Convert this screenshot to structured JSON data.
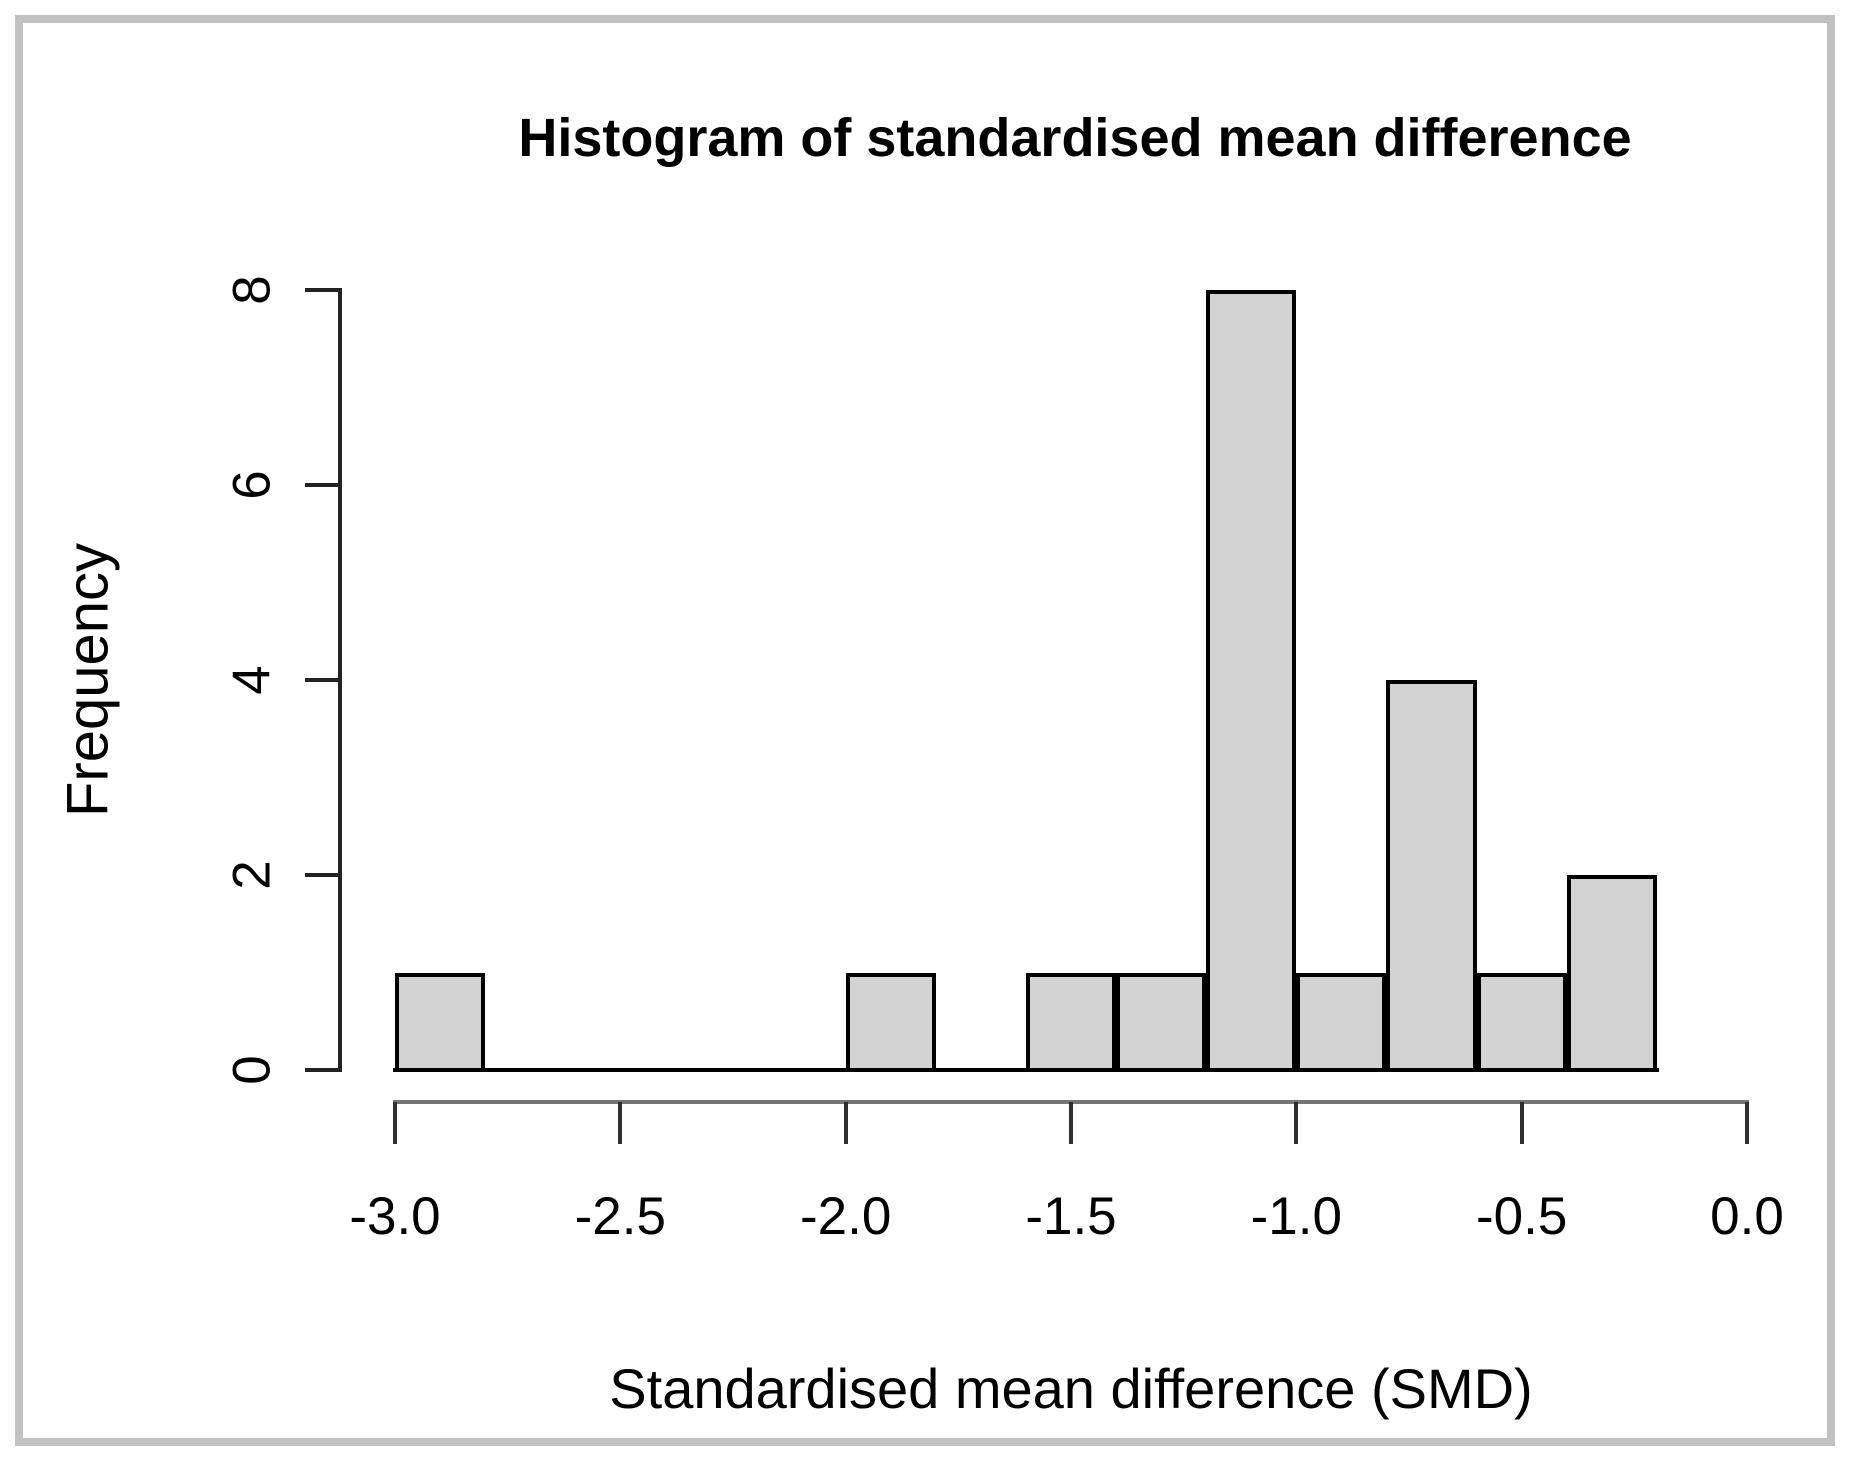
{
  "chart": {
    "title": "Histogram of standardised mean difference",
    "xlabel": "Standardised mean difference (SMD)",
    "ylabel": "Frequency",
    "x_tick_labels": [
      "-3.0",
      "-2.5",
      "-2.0",
      "-1.5",
      "-1.0",
      "-0.5",
      "0.0"
    ],
    "y_tick_labels": [
      "0",
      "2",
      "4",
      "6",
      "8"
    ]
  },
  "chart_data": {
    "type": "bar",
    "subtype": "histogram",
    "title": "Histogram of standardised mean difference",
    "xlabel": "Standardised mean difference (SMD)",
    "ylabel": "Frequency",
    "xlim": [
      -3.0,
      0.0
    ],
    "ylim": [
      0,
      8
    ],
    "x_tick_values": [
      -3.0,
      -2.5,
      -2.0,
      -1.5,
      -1.0,
      -0.5,
      0.0
    ],
    "y_tick_values": [
      0,
      2,
      4,
      6,
      8
    ],
    "grid": false,
    "legend": false,
    "bin_width": 0.2,
    "total_count": 20,
    "bins": [
      {
        "range": [
          -3.0,
          -2.8
        ],
        "count": 1
      },
      {
        "range": [
          -2.8,
          -2.6
        ],
        "count": 0
      },
      {
        "range": [
          -2.6,
          -2.4
        ],
        "count": 0
      },
      {
        "range": [
          -2.4,
          -2.2
        ],
        "count": 0
      },
      {
        "range": [
          -2.2,
          -2.0
        ],
        "count": 0
      },
      {
        "range": [
          -2.0,
          -1.8
        ],
        "count": 1
      },
      {
        "range": [
          -1.8,
          -1.6
        ],
        "count": 0
      },
      {
        "range": [
          -1.6,
          -1.4
        ],
        "count": 1
      },
      {
        "range": [
          -1.4,
          -1.2
        ],
        "count": 1
      },
      {
        "range": [
          -1.2,
          -1.0
        ],
        "count": 8
      },
      {
        "range": [
          -1.0,
          -0.8
        ],
        "count": 1
      },
      {
        "range": [
          -0.8,
          -0.6
        ],
        "count": 4
      },
      {
        "range": [
          -0.6,
          -0.4
        ],
        "count": 1
      },
      {
        "range": [
          -0.4,
          -0.2
        ],
        "count": 2
      }
    ]
  },
  "colors": {
    "bar_fill": "#d2d2d2",
    "bar_border": "#000000",
    "baseline": "#000000",
    "y_axis": "#222222",
    "x_axis_line": "#757575",
    "tick": "#2e2e2e",
    "text": "#000000",
    "frame": "#c1c1c1",
    "background": "#ffffff"
  }
}
